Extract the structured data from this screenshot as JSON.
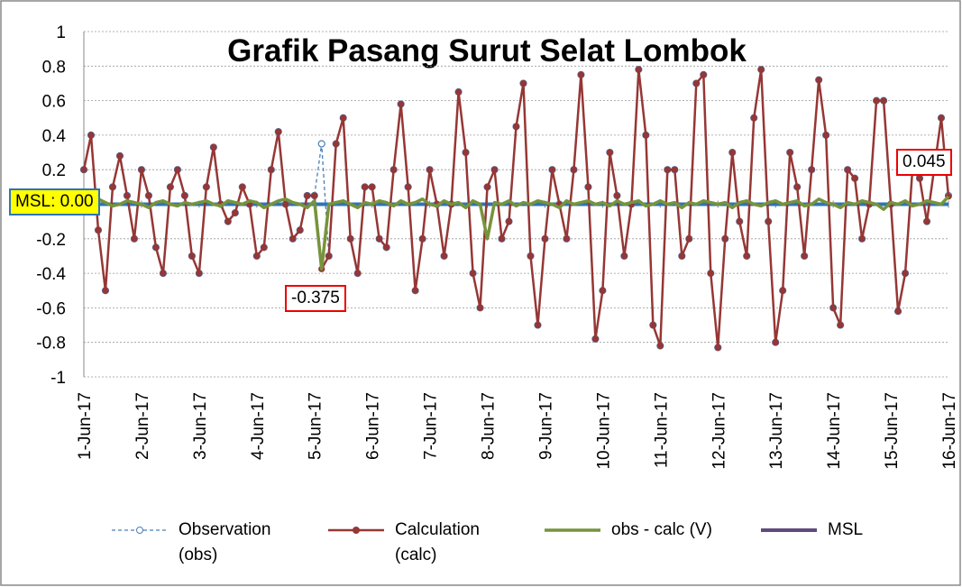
{
  "chart_data": {
    "type": "line",
    "title": "Grafik Pasang Surut Selat Lombok",
    "categories": [
      "1-Jun-17",
      null,
      null,
      null,
      null,
      null,
      null,
      null,
      "2-Jun-17",
      null,
      null,
      null,
      null,
      null,
      null,
      null,
      "3-Jun-17",
      null,
      null,
      null,
      null,
      null,
      null,
      null,
      "4-Jun-17",
      null,
      null,
      null,
      null,
      null,
      null,
      null,
      "5-Jun-17",
      null,
      null,
      null,
      null,
      null,
      null,
      null,
      "6-Jun-17",
      null,
      null,
      null,
      null,
      null,
      null,
      null,
      "7-Jun-17",
      null,
      null,
      null,
      null,
      null,
      null,
      null,
      "8-Jun-17",
      null,
      null,
      null,
      null,
      null,
      null,
      null,
      "9-Jun-17",
      null,
      null,
      null,
      null,
      null,
      null,
      null,
      "10-Jun-17",
      null,
      null,
      null,
      null,
      null,
      null,
      null,
      "11-Jun-17",
      null,
      null,
      null,
      null,
      null,
      null,
      null,
      "12-Jun-17",
      null,
      null,
      null,
      null,
      null,
      null,
      null,
      "13-Jun-17",
      null,
      null,
      null,
      null,
      null,
      null,
      null,
      "14-Jun-17",
      null,
      null,
      null,
      null,
      null,
      null,
      null,
      "15-Jun-17",
      null,
      null,
      null,
      null,
      null,
      null,
      null,
      "16-Jun-17"
    ],
    "series": [
      {
        "name": "Observation (obs)",
        "color": "#4a7ebb",
        "values": [
          0.2,
          0.4,
          -0.15,
          -0.5,
          0.1,
          0.28,
          0.05,
          -0.2,
          0.2,
          0.05,
          -0.25,
          -0.4,
          0.1,
          0.2,
          0.05,
          -0.3,
          -0.4,
          0.1,
          0.33,
          0.0,
          -0.1,
          -0.05,
          0.1,
          0.0,
          -0.3,
          -0.25,
          0.2,
          0.42,
          0.0,
          -0.2,
          -0.15,
          0.05,
          0.05,
          0.35,
          -0.3,
          0.35,
          0.5,
          -0.2,
          -0.4,
          0.1,
          0.1,
          -0.2,
          -0.25,
          0.2,
          0.58,
          0.1,
          -0.5,
          -0.2,
          0.2,
          0.0,
          -0.3,
          0.0,
          0.65,
          0.3,
          -0.4,
          -0.6,
          0.1,
          0.2,
          -0.2,
          -0.1,
          0.45,
          0.7,
          -0.3,
          -0.7,
          -0.2,
          0.2,
          0.0,
          -0.2,
          0.2,
          0.75,
          0.1,
          -0.78,
          -0.5,
          0.3,
          0.05,
          -0.3,
          0.0,
          0.78,
          0.4,
          -0.7,
          -0.82,
          0.2,
          0.2,
          -0.3,
          -0.2,
          0.7,
          0.75,
          -0.4,
          -0.83,
          -0.2,
          0.3,
          -0.1,
          -0.3,
          0.5,
          0.78,
          -0.1,
          -0.8,
          -0.5,
          0.3,
          0.1,
          -0.3,
          0.2,
          0.72,
          0.4,
          -0.6,
          -0.7,
          0.2,
          0.15,
          -0.2,
          0.0,
          0.6,
          0.6,
          0.0,
          -0.62,
          -0.4,
          0.2,
          0.15,
          -0.1,
          0.2,
          0.5,
          0.05
        ]
      },
      {
        "name": "Calculation (calc)",
        "color": "#953735",
        "values": [
          0.2,
          0.4,
          -0.15,
          -0.5,
          0.1,
          0.28,
          0.05,
          -0.2,
          0.2,
          0.05,
          -0.25,
          -0.4,
          0.1,
          0.2,
          0.05,
          -0.3,
          -0.4,
          0.1,
          0.33,
          0.0,
          -0.1,
          -0.05,
          0.1,
          0.0,
          -0.3,
          -0.25,
          0.2,
          0.42,
          0.0,
          -0.2,
          -0.15,
          0.05,
          0.05,
          -0.375,
          -0.3,
          0.35,
          0.5,
          -0.2,
          -0.4,
          0.1,
          0.1,
          -0.2,
          -0.25,
          0.2,
          0.58,
          0.1,
          -0.5,
          -0.2,
          0.2,
          0.0,
          -0.3,
          0.0,
          0.65,
          0.3,
          -0.4,
          -0.6,
          0.1,
          0.2,
          -0.2,
          -0.1,
          0.45,
          0.7,
          -0.3,
          -0.7,
          -0.2,
          0.2,
          0.0,
          -0.2,
          0.2,
          0.75,
          0.1,
          -0.78,
          -0.5,
          0.3,
          0.05,
          -0.3,
          0.0,
          0.78,
          0.4,
          -0.7,
          -0.82,
          0.2,
          0.2,
          -0.3,
          -0.2,
          0.7,
          0.75,
          -0.4,
          -0.83,
          -0.2,
          0.3,
          -0.1,
          -0.3,
          0.5,
          0.78,
          -0.1,
          -0.8,
          -0.5,
          0.3,
          0.1,
          -0.3,
          0.2,
          0.72,
          0.4,
          -0.6,
          -0.7,
          0.2,
          0.15,
          -0.2,
          0.0,
          0.6,
          0.6,
          0.0,
          -0.62,
          -0.4,
          0.2,
          0.15,
          -0.1,
          0.2,
          0.5,
          0.045
        ]
      },
      {
        "name": "obs - calc (V)",
        "color": "#77933c",
        "values": [
          0,
          0.02,
          0.03,
          0.01,
          -0.01,
          0,
          0.02,
          0.01,
          0,
          -0.02,
          0.01,
          0.02,
          0,
          -0.01,
          0.01,
          0,
          0.01,
          0.02,
          0,
          -0.01,
          0.02,
          0.01,
          0,
          0.02,
          0.01,
          -0.02,
          0,
          0.02,
          0.03,
          0.01,
          0,
          -0.02,
          0.02,
          -0.375,
          0,
          0.01,
          0.02,
          0,
          -0.02,
          0.01,
          0,
          0.02,
          0.01,
          -0.01,
          0.02,
          0,
          0.01,
          0.03,
          0,
          -0.01,
          0.02,
          0,
          0.01,
          -0.02,
          0.02,
          0,
          -0.2,
          0.01,
          0,
          0.02,
          -0.01,
          0.01,
          0,
          0.02,
          0.01,
          0,
          -0.02,
          0.02,
          0,
          0.01,
          0.02,
          0,
          0.01,
          -0.01,
          0.02,
          0,
          0.01,
          0.02,
          -0.01,
          0,
          0.02,
          0,
          0.01,
          -0.02,
          0.01,
          0,
          0.02,
          0.01,
          0,
          0.01,
          -0.02,
          0.01,
          0.02,
          0,
          -0.01,
          0.01,
          0.02,
          0,
          0.01,
          0.02,
          -0.01,
          0,
          0.03,
          0.01,
          0,
          -0.02,
          0.01,
          0,
          0.02,
          0.01,
          0,
          -0.03,
          0.01,
          0,
          0.02,
          -0.01,
          0,
          0.02,
          0.01,
          0,
          0.045
        ]
      },
      {
        "name": "MSL",
        "color": "#604a7b",
        "values": [
          0,
          0,
          0,
          0,
          0,
          0,
          0,
          0,
          0,
          0,
          0,
          0,
          0,
          0,
          0,
          0,
          0,
          0,
          0,
          0,
          0,
          0,
          0,
          0,
          0,
          0,
          0,
          0,
          0,
          0,
          0,
          0,
          0,
          0,
          0,
          0,
          0,
          0,
          0,
          0,
          0,
          0,
          0,
          0,
          0,
          0,
          0,
          0,
          0,
          0,
          0,
          0,
          0,
          0,
          0,
          0,
          0,
          0,
          0,
          0,
          0,
          0,
          0,
          0,
          0,
          0,
          0,
          0,
          0,
          0,
          0,
          0,
          0,
          0,
          0,
          0,
          0,
          0,
          0,
          0,
          0,
          0,
          0,
          0,
          0,
          0,
          0,
          0,
          0,
          0,
          0,
          0,
          0,
          0,
          0,
          0,
          0,
          0,
          0,
          0,
          0,
          0,
          0,
          0,
          0,
          0,
          0,
          0,
          0,
          0,
          0,
          0,
          0,
          0,
          0,
          0,
          0,
          0,
          0,
          0,
          0
        ]
      }
    ],
    "ylim": [
      -1,
      1
    ],
    "yticks": [
      -1,
      -0.8,
      -0.6,
      -0.4,
      -0.2,
      {
        "value": 0,
        "label": ""
      },
      0.2,
      0.4,
      0.6,
      0.8,
      1
    ],
    "grid": true,
    "legend": "bottom",
    "annotations": [
      "MSL: 0.00",
      "-0.375",
      "0.045"
    ]
  }
}
